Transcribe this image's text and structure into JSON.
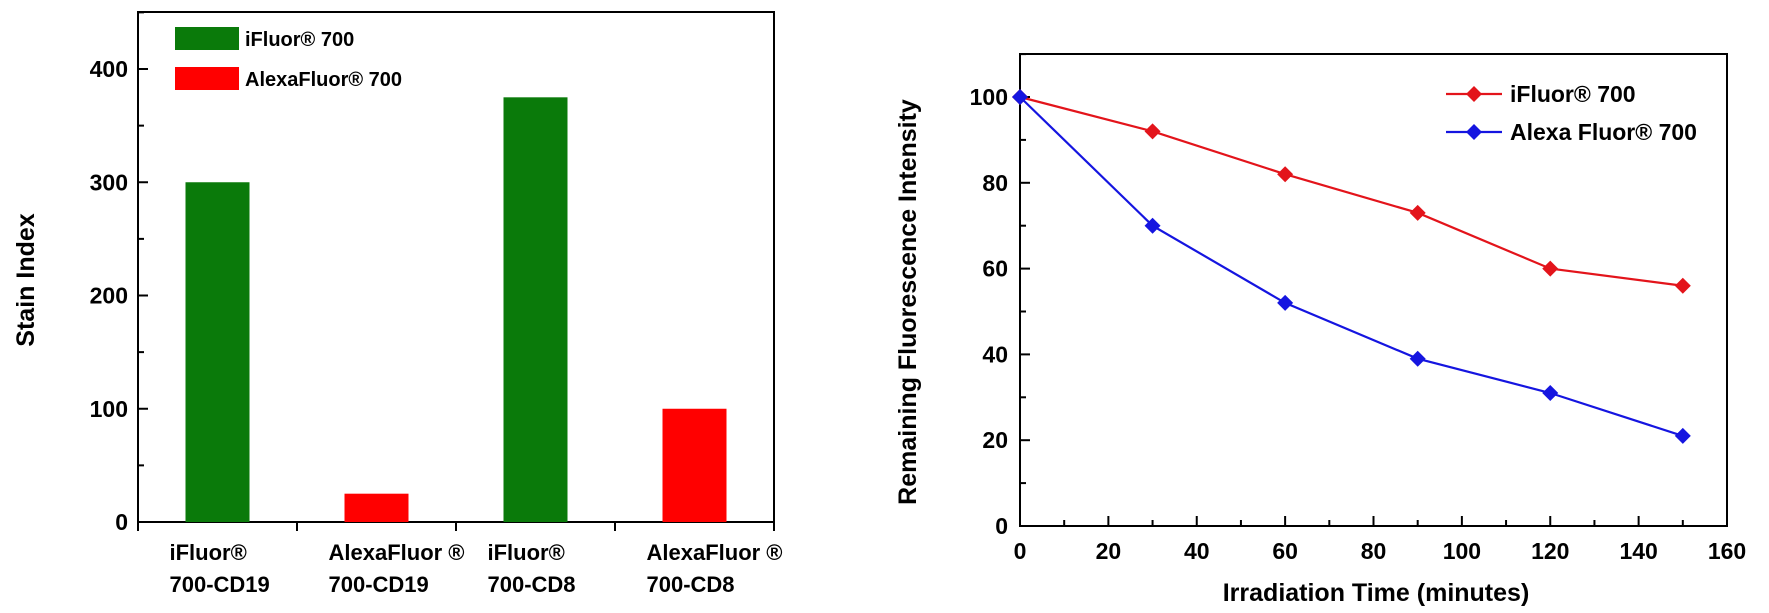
{
  "chart_data": [
    {
      "type": "bar",
      "title": "",
      "xlabel": "",
      "ylabel": "Stain Index",
      "ylim": [
        0,
        450
      ],
      "yticks": [
        0,
        100,
        200,
        300,
        400
      ],
      "categories": [
        [
          "iFluor®",
          "700-CD19"
        ],
        [
          "AlexaFluor ®",
          "700-CD19"
        ],
        [
          "iFluor®",
          "700-CD8"
        ],
        [
          "AlexaFluor ®",
          "700-CD8"
        ]
      ],
      "values": [
        300,
        25,
        375,
        100
      ],
      "bar_series": [
        "iFluor® 700",
        "AlexaFluor® 700",
        "iFluor® 700",
        "AlexaFluor® 700"
      ],
      "legend": [
        {
          "name": "iFluor® 700",
          "color": "#0a7a0a"
        },
        {
          "name": "AlexaFluor® 700",
          "color": "#ff0000"
        }
      ],
      "legend_position": "top-left"
    },
    {
      "type": "line",
      "title": "",
      "xlabel": "Irradiation Time (minutes)",
      "ylabel": "Remaining Fluorescence Intensity",
      "xlim": [
        0,
        160
      ],
      "ylim": [
        0,
        110
      ],
      "xticks": [
        0,
        20,
        40,
        60,
        80,
        100,
        120,
        140,
        160
      ],
      "yticks": [
        0,
        20,
        40,
        60,
        80,
        100
      ],
      "x": [
        0,
        30,
        60,
        90,
        120,
        150
      ],
      "series": [
        {
          "name": "iFluor® 700",
          "color": "#e3141b",
          "values": [
            100,
            92,
            82,
            73,
            60,
            56
          ]
        },
        {
          "name": "Alexa Fluor® 700",
          "color": "#1515e0",
          "values": [
            100,
            70,
            52,
            39,
            31,
            21
          ]
        }
      ],
      "legend_position": "top-right"
    }
  ]
}
